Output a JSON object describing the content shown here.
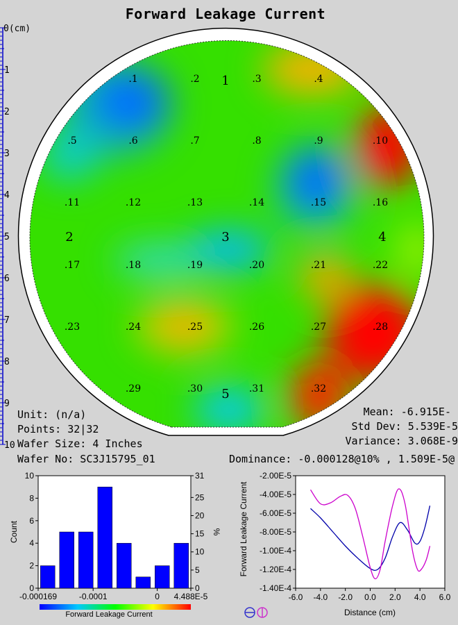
{
  "header": {
    "title": "Forward Leakage Current"
  },
  "ruler": {
    "unit_label": "0(cm)",
    "ticks": [
      "1",
      "2",
      "3",
      "4",
      "5",
      "6",
      "7",
      "8",
      "9",
      "10"
    ]
  },
  "wafer_map": {
    "sites": [
      ".1",
      ".2",
      ".3",
      ".4",
      ".5",
      ".6",
      ".7",
      ".8",
      ".9",
      ".10",
      ".11",
      ".12",
      ".13",
      ".14",
      ".15",
      ".16",
      ".17",
      ".18",
      ".19",
      ".20",
      ".21",
      ".22",
      ".23",
      ".24",
      ".25",
      ".26",
      ".27",
      ".28",
      ".29",
      ".30",
      ".31",
      ".32"
    ],
    "zones": [
      "1",
      "2",
      "3",
      "4",
      "5"
    ],
    "colors": {
      "low": "#0000ff",
      "mid": "#00ff00",
      "high": "#ff0000"
    }
  },
  "info": {
    "unit": "Unit: (n/a)",
    "points": "Points: 32|32",
    "wafer_size": "Wafer Size: 4 Inches",
    "wafer_no": "Wafer No: SC3J15795_01",
    "mean": "Mean: -6.915E-",
    "std_dev": "Std Dev: 5.539E-5",
    "variance": "Variance: 3.068E-9",
    "dominance": "Dominance: -0.000128@10% , 1.509E-5@"
  },
  "chart_data": [
    {
      "type": "bar",
      "title": "",
      "xlabel": "Forward Leakage Current",
      "ylabel": "Count",
      "y2label": "%",
      "values": [
        2,
        5,
        5,
        9,
        4,
        1,
        2,
        4
      ],
      "ylim": [
        0,
        10
      ],
      "y2lim": [
        0,
        31
      ],
      "yticks": [
        "0",
        "2",
        "4",
        "6",
        "8",
        "10"
      ],
      "y2ticks": [
        "0",
        "5",
        "10",
        "15",
        "20",
        "25",
        "31"
      ],
      "xticks": [
        "-0.000169",
        "-0.0001",
        "0",
        "4.488E-5"
      ],
      "bar_color": "#0000ff"
    },
    {
      "type": "line",
      "xlabel": "Distance (cm)",
      "ylabel": "Forward Leakage Current",
      "xlim": [
        -6.0,
        6.0
      ],
      "ylim": [
        -0.00014,
        -2e-05
      ],
      "xticks": [
        "-6.0",
        "-4.0",
        "-2.0",
        "0.0",
        "2.0",
        "4.0",
        "6.0"
      ],
      "yticks": [
        "-2.00E-5",
        "-4.00E-5",
        "-6.00E-5",
        "-8.00E-5",
        "-1.00E-4",
        "-1.20E-4",
        "-1.40E-4"
      ],
      "series": [
        {
          "color": "#0000aa",
          "x": [
            -4.8,
            -4.0,
            -3.0,
            -2.0,
            -1.0,
            0.0,
            0.6,
            1.2,
            1.8,
            2.4,
            3.0,
            3.6,
            4.0,
            4.4,
            4.8
          ],
          "y": [
            -5.5e-05,
            -6.5e-05,
            -8e-05,
            -9.5e-05,
            -0.000108,
            -0.000119,
            -0.00012,
            -0.000108,
            -8.5e-05,
            -7e-05,
            -7.8e-05,
            -9.2e-05,
            -9e-05,
            -7.5e-05,
            -5.2e-05
          ]
        },
        {
          "color": "#cc00cc",
          "x": [
            -4.8,
            -4.0,
            -3.2,
            -2.4,
            -1.8,
            -1.2,
            -0.6,
            0.0,
            0.4,
            0.8,
            1.2,
            1.8,
            2.3,
            2.8,
            3.4,
            3.8,
            4.1,
            4.5,
            4.8
          ],
          "y": [
            -3.5e-05,
            -5e-05,
            -4.9e-05,
            -4.2e-05,
            -4.1e-05,
            -5.5e-05,
            -8.5e-05,
            -0.000118,
            -0.00013,
            -0.00012,
            -9e-05,
            -5.2e-05,
            -3.4e-05,
            -5e-05,
            -0.0001,
            -0.00012,
            -0.00012,
            -0.00011,
            -9.5e-05
          ]
        }
      ]
    }
  ]
}
